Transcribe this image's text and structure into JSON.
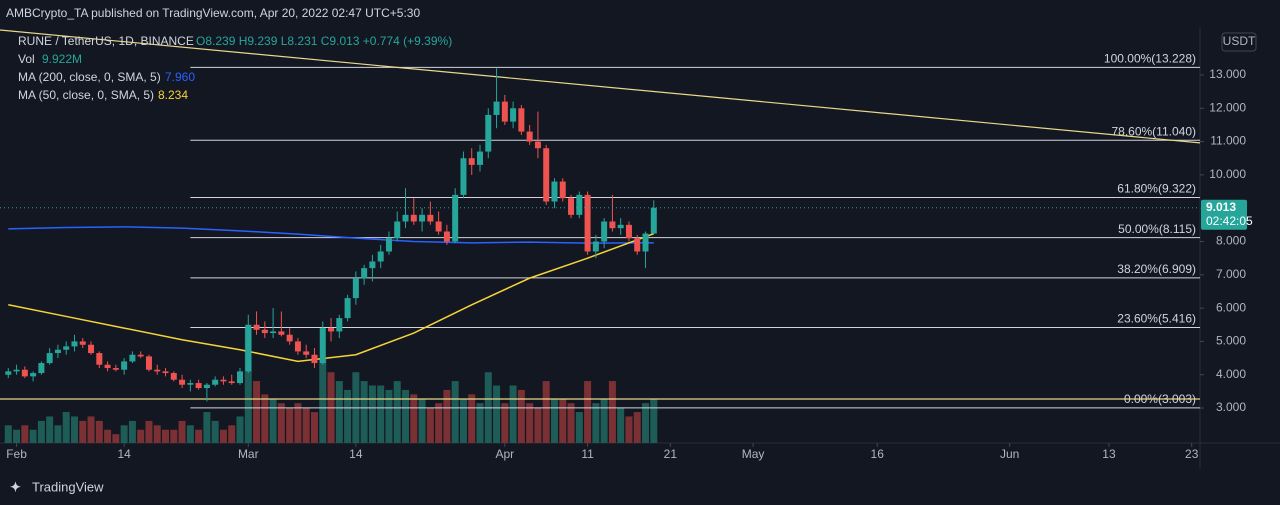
{
  "header": {
    "publisher": "AMBCrypto_TA published on TradingView.com, Apr 20, 2022 02:47 UTC+5:30",
    "symbol": "RUNE / TetherUS, 1D, BINANCE",
    "ohlc": "O8.239 H9.239 L8.231 C9.013 +0.774 (+9.39%)"
  },
  "footer": {
    "brand": "TradingView"
  },
  "chart_data": {
    "type": "candlestick",
    "currency": "USDT",
    "up_color": "#26a69a",
    "down_color": "#ef5350",
    "x": [
      "2022-01-31",
      "2022-02-01",
      "2022-02-02",
      "2022-02-03",
      "2022-02-04",
      "2022-02-05",
      "2022-02-06",
      "2022-02-07",
      "2022-02-08",
      "2022-02-09",
      "2022-02-10",
      "2022-02-11",
      "2022-02-12",
      "2022-02-13",
      "2022-02-14",
      "2022-02-15",
      "2022-02-16",
      "2022-02-17",
      "2022-02-18",
      "2022-02-19",
      "2022-02-20",
      "2022-02-21",
      "2022-02-22",
      "2022-02-23",
      "2022-02-24",
      "2022-02-25",
      "2022-02-26",
      "2022-02-27",
      "2022-02-28",
      "2022-03-01",
      "2022-03-02",
      "2022-03-03",
      "2022-03-04",
      "2022-03-05",
      "2022-03-06",
      "2022-03-07",
      "2022-03-08",
      "2022-03-09",
      "2022-03-10",
      "2022-03-11",
      "2022-03-12",
      "2022-03-13",
      "2022-03-14",
      "2022-03-15",
      "2022-03-16",
      "2022-03-17",
      "2022-03-18",
      "2022-03-19",
      "2022-03-20",
      "2022-03-21",
      "2022-03-22",
      "2022-03-23",
      "2022-03-24",
      "2022-03-25",
      "2022-03-26",
      "2022-03-27",
      "2022-03-28",
      "2022-03-29",
      "2022-03-30",
      "2022-03-31",
      "2022-04-01",
      "2022-04-02",
      "2022-04-03",
      "2022-04-04",
      "2022-04-05",
      "2022-04-06",
      "2022-04-07",
      "2022-04-08",
      "2022-04-09",
      "2022-04-10",
      "2022-04-11",
      "2022-04-12",
      "2022-04-13",
      "2022-04-14",
      "2022-04-15",
      "2022-04-16",
      "2022-04-17",
      "2022-04-18",
      "2022-04-19"
    ],
    "open": [
      4.0,
      4.1,
      4.15,
      3.95,
      4.05,
      4.35,
      4.65,
      4.75,
      4.85,
      5.0,
      4.9,
      4.65,
      4.3,
      4.2,
      4.15,
      4.4,
      4.6,
      4.55,
      4.15,
      4.1,
      4.05,
      3.85,
      3.7,
      3.75,
      3.6,
      3.7,
      3.85,
      3.8,
      3.75,
      4.1,
      5.5,
      5.35,
      5.25,
      5.3,
      5.2,
      5.0,
      4.7,
      4.6,
      4.35,
      5.4,
      5.3,
      5.7,
      6.3,
      6.9,
      7.2,
      7.4,
      7.7,
      8.1,
      8.6,
      8.8,
      8.6,
      8.8,
      8.6,
      8.3,
      8.0,
      9.4,
      10.5,
      10.3,
      10.7,
      11.8,
      12.2,
      11.6,
      12.0,
      11.3,
      11.0,
      10.8,
      9.2,
      9.8,
      9.3,
      8.8,
      9.4,
      7.7,
      8.0,
      8.6,
      8.4,
      8.5,
      8.1,
      7.7,
      8.239
    ],
    "high": [
      4.2,
      4.3,
      4.25,
      4.1,
      4.4,
      4.8,
      4.9,
      5.0,
      5.2,
      5.1,
      5.0,
      4.7,
      4.4,
      4.3,
      4.5,
      4.7,
      4.7,
      4.6,
      4.3,
      4.2,
      4.1,
      4.0,
      3.85,
      3.85,
      3.75,
      3.95,
      3.95,
      4.0,
      4.2,
      5.8,
      5.9,
      5.6,
      6.0,
      5.9,
      5.4,
      5.1,
      4.9,
      4.8,
      5.6,
      5.7,
      5.8,
      6.4,
      7.1,
      7.3,
      7.6,
      7.9,
      8.3,
      8.9,
      9.6,
      9.3,
      9.0,
      9.2,
      8.9,
      8.5,
      9.6,
      10.7,
      10.8,
      10.9,
      12.0,
      13.2,
      12.4,
      12.2,
      12.1,
      11.5,
      11.9,
      10.9,
      9.9,
      9.9,
      9.4,
      9.5,
      9.5,
      8.2,
      8.7,
      9.4,
      8.7,
      8.6,
      8.2,
      8.3,
      9.239
    ],
    "low": [
      3.9,
      4.0,
      3.9,
      3.8,
      4.0,
      4.3,
      4.5,
      4.6,
      4.7,
      4.8,
      4.6,
      4.2,
      4.1,
      4.1,
      4.0,
      4.35,
      4.5,
      4.1,
      4.0,
      3.95,
      3.8,
      3.6,
      3.5,
      3.55,
      3.2,
      3.65,
      3.7,
      3.7,
      3.7,
      4.05,
      5.2,
      5.1,
      5.1,
      5.15,
      4.9,
      4.6,
      4.5,
      4.2,
      4.3,
      5.0,
      5.1,
      5.6,
      6.1,
      6.7,
      6.8,
      7.2,
      7.6,
      8.0,
      8.4,
      8.5,
      8.3,
      8.5,
      8.2,
      7.9,
      7.95,
      9.3,
      10.0,
      10.1,
      10.5,
      11.4,
      11.5,
      11.4,
      11.2,
      10.9,
      10.5,
      9.1,
      9.0,
      9.2,
      8.7,
      8.7,
      7.6,
      7.5,
      7.8,
      8.3,
      8.2,
      8.0,
      7.6,
      7.2,
      8.231
    ],
    "close": [
      4.1,
      4.15,
      3.95,
      4.05,
      4.35,
      4.65,
      4.75,
      4.85,
      5.0,
      4.9,
      4.65,
      4.3,
      4.2,
      4.15,
      4.4,
      4.6,
      4.55,
      4.15,
      4.1,
      4.05,
      3.85,
      3.7,
      3.75,
      3.6,
      3.7,
      3.85,
      3.8,
      3.75,
      4.1,
      5.5,
      5.35,
      5.25,
      5.3,
      5.2,
      5.0,
      4.7,
      4.6,
      4.35,
      5.4,
      5.3,
      5.7,
      6.3,
      6.9,
      7.2,
      7.4,
      7.7,
      8.1,
      8.6,
      8.8,
      8.6,
      8.8,
      8.6,
      8.3,
      8.0,
      9.4,
      10.5,
      10.3,
      10.7,
      11.8,
      12.2,
      11.6,
      12.0,
      11.3,
      11.0,
      10.8,
      9.2,
      9.8,
      9.3,
      8.8,
      9.4,
      7.7,
      8.0,
      8.6,
      8.4,
      8.5,
      8.1,
      7.7,
      8.239,
      9.013
    ],
    "volume": {
      "name": "Vol",
      "value_label": "9.922M",
      "up_color": "#1e5c58",
      "down_color": "#7b3034",
      "values": [
        4,
        3,
        4,
        3,
        5,
        6,
        4,
        7,
        6,
        5,
        6,
        5,
        3,
        2,
        4,
        5,
        3,
        5,
        4,
        3,
        3,
        5,
        4,
        3,
        7,
        5,
        3,
        4,
        6,
        26,
        14,
        11,
        10,
        9,
        8,
        9,
        8,
        7,
        19,
        16,
        14,
        12,
        16,
        14,
        13,
        13,
        12,
        14,
        12,
        11,
        10,
        8,
        9,
        12,
        14,
        10,
        11,
        9,
        16,
        13,
        9,
        13,
        12,
        9,
        8,
        14,
        10,
        10,
        9,
        7,
        14,
        9,
        10,
        14,
        8,
        6,
        7,
        9,
        9.922
      ]
    },
    "ylim": [
      1.95,
      14.41
    ],
    "yticks": [
      {
        "value": 3,
        "label": "3.000"
      },
      {
        "value": 4,
        "label": "4.000"
      },
      {
        "value": 5,
        "label": "5.000"
      },
      {
        "value": 6,
        "label": "6.000"
      },
      {
        "value": 7,
        "label": "7.000"
      },
      {
        "value": 8,
        "label": "8.000"
      },
      {
        "value": 9,
        "label": "9.000"
      },
      {
        "value": 10,
        "label": "10.000"
      },
      {
        "value": 11,
        "label": "11.000"
      },
      {
        "value": 12,
        "label": "12.000"
      },
      {
        "value": 13,
        "label": "13.000"
      }
    ],
    "xlim": [
      "2022-01-30",
      "2022-06-24"
    ],
    "xticks": [
      {
        "value": "2022-02-01",
        "label": "Feb"
      },
      {
        "value": "2022-02-14",
        "label": "14"
      },
      {
        "value": "2022-03-01",
        "label": "Mar"
      },
      {
        "value": "2022-03-14",
        "label": "14"
      },
      {
        "value": "2022-04-01",
        "label": "Apr"
      },
      {
        "value": "2022-04-11",
        "label": "11"
      },
      {
        "value": "2022-04-21",
        "label": "21"
      },
      {
        "value": "2022-05-01",
        "label": "May"
      },
      {
        "value": "2022-05-16",
        "label": "16"
      },
      {
        "value": "2022-06-01",
        "label": "Jun"
      },
      {
        "value": "2022-06-13",
        "label": "13"
      },
      {
        "value": "2022-06-23",
        "label": "23"
      }
    ],
    "moving_averages": [
      {
        "name": "MA (200, close, 0, SMA, 5)",
        "value_label": "7.960",
        "color": "#2962ff",
        "x": [
          "2022-01-31",
          "2022-02-07",
          "2022-02-14",
          "2022-02-21",
          "2022-02-28",
          "2022-03-07",
          "2022-03-14",
          "2022-03-21",
          "2022-03-28",
          "2022-04-04",
          "2022-04-11",
          "2022-04-19"
        ],
        "values": [
          8.38,
          8.42,
          8.44,
          8.4,
          8.32,
          8.22,
          8.1,
          8.0,
          7.96,
          7.98,
          7.95,
          7.96
        ]
      },
      {
        "name": "MA (50, close, 0, SMA, 5)",
        "value_label": "8.234",
        "color": "#f7d33a",
        "x": [
          "2022-01-31",
          "2022-02-07",
          "2022-02-14",
          "2022-02-21",
          "2022-02-28",
          "2022-03-07",
          "2022-03-14",
          "2022-03-21",
          "2022-03-28",
          "2022-04-04",
          "2022-04-11",
          "2022-04-19"
        ],
        "values": [
          6.1,
          5.75,
          5.4,
          5.05,
          4.75,
          4.4,
          4.6,
          5.25,
          6.1,
          6.9,
          7.5,
          8.234
        ]
      }
    ],
    "trendline": {
      "color": "#e8d98a",
      "x": [
        "2022-01-30",
        "2022-06-24"
      ],
      "values": [
        14.35,
        10.96
      ]
    },
    "hline": {
      "color": "#e8d98a",
      "value": 3.27
    },
    "fib_levels": {
      "color": "#d1d4dc",
      "x": [
        "2022-02-22",
        "2022-06-24"
      ],
      "levels": [
        {
          "value": 13.228,
          "label": "100.00%(13.228)"
        },
        {
          "value": 11.04,
          "label": "78.60%(11.040)"
        },
        {
          "value": 9.322,
          "label": "61.80%(9.322)"
        },
        {
          "value": 8.115,
          "label": "50.00%(8.115)"
        },
        {
          "value": 6.909,
          "label": "38.20%(6.909)"
        },
        {
          "value": 5.416,
          "label": "23.60%(5.416)"
        },
        {
          "value": 3.003,
          "label": "0.00%(3.003)"
        }
      ]
    },
    "price_tag": {
      "value": 9.013,
      "label": "9.013",
      "countdown": "02:42:05",
      "color": "#26a69a"
    }
  }
}
